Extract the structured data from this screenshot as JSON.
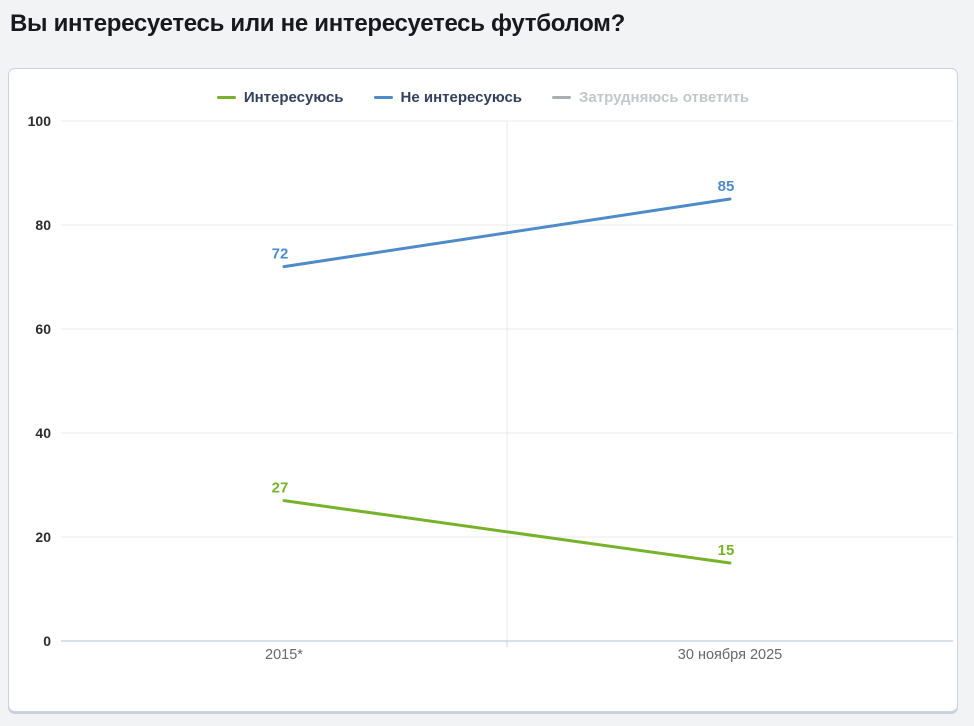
{
  "page": {
    "title": "Вы интересуетесь или не интересуетесь футболом?"
  },
  "colors": {
    "green": "#76b32b",
    "blue": "#4e8bc8",
    "disabled_dash": "#a9aeb5",
    "grid": "#ebebeb",
    "axis_line": "#ccd6e3",
    "panel_bg": "#ffffff",
    "page_bg": "#f2f3f5"
  },
  "legend": {
    "items": [
      {
        "label": "Интересуюсь",
        "color": "#76b32b",
        "enabled": true
      },
      {
        "label": "Не интересуюсь",
        "color": "#4e8bc8",
        "enabled": true
      },
      {
        "label": "Затрудняюсь ответить",
        "color": "#a9aeb5",
        "enabled": false
      }
    ]
  },
  "chart_data": {
    "type": "line",
    "title": "Вы интересуетесь или не интересуетесь футболом?",
    "categories": [
      "2015*",
      "30 ноября 2025"
    ],
    "series": [
      {
        "name": "Не интересуюсь",
        "color": "#4e8bc8",
        "values": [
          72,
          85
        ],
        "visible": true
      },
      {
        "name": "Интересуюсь",
        "color": "#76b32b",
        "values": [
          27,
          15
        ],
        "visible": true
      },
      {
        "name": "Затрудняюсь ответить",
        "color": "#a9aeb5",
        "values": null,
        "visible": false
      }
    ],
    "xlabel": "",
    "ylabel": "",
    "ylim": [
      0,
      100
    ],
    "yticks": [
      0,
      20,
      40,
      60,
      80,
      100
    ],
    "grid": true,
    "legend_position": "top"
  }
}
